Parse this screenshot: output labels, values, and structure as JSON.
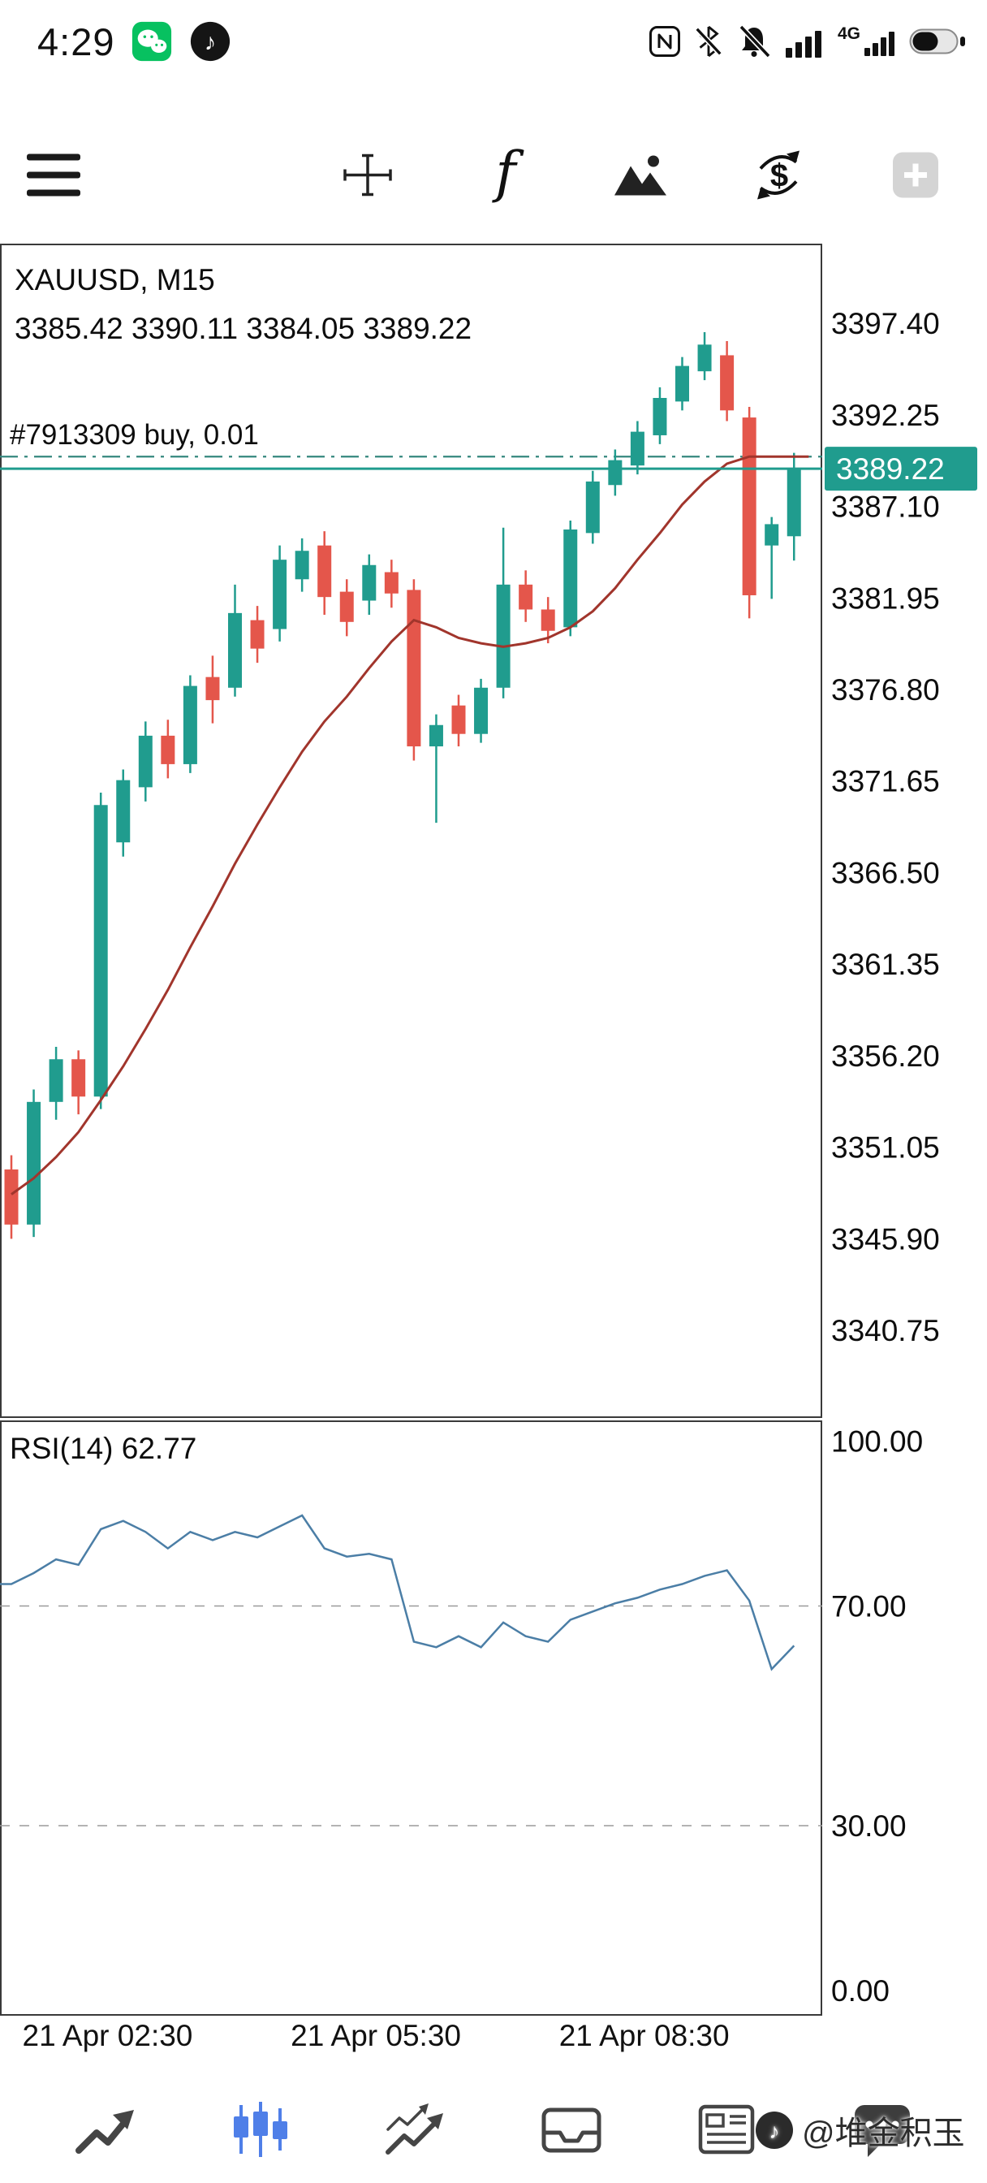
{
  "status_bar": {
    "time": "4:29",
    "network_label": "4G",
    "app_icons": [
      "wechat",
      "tiktok"
    ],
    "system_icons": [
      "nfc",
      "bluetooth-off",
      "mute",
      "signal",
      "signal-4g",
      "battery"
    ]
  },
  "icons": {
    "fx_glyph": "f",
    "dollar_glyph": "$",
    "note_glyph": "♪"
  },
  "top_toolbar": {
    "items": [
      "menu",
      "crosshair",
      "indicators",
      "objects",
      "new-order",
      "add-chart"
    ]
  },
  "time_axis": {
    "labels": [
      "21 Apr 02:30",
      "21 Apr 05:30",
      "21 Apr 08:30"
    ],
    "candle_indices": [
      4.3,
      16.3,
      28.3
    ]
  },
  "bottom_bar": {
    "items": [
      "quotes",
      "charts",
      "trade",
      "history",
      "news",
      "messages"
    ],
    "active": "charts",
    "active_color": "#4f7fe8"
  },
  "watermark": {
    "text": "@堆金积玉"
  },
  "colors": {
    "bull": "#209c8e",
    "bear": "#e4564b",
    "ma": "#a1352c",
    "rsi": "#4b7ea6",
    "accent": "#209c8e",
    "icon_dark": "#454545"
  },
  "chart_data": [
    {
      "type": "candlestick",
      "title": "XAUUSD, M15",
      "symbol": "XAUUSD",
      "timeframe": "M15",
      "ohlc_display": "3385.42 3390.11 3384.05 3389.22",
      "open": 3385.42,
      "high": 3390.11,
      "low": 3384.05,
      "close": 3389.22,
      "bull_color": "#209c8e",
      "bear_color": "#e4564b",
      "ylim": [
        3335.82,
        3401.88
      ],
      "y_ticks": [
        3397.4,
        3392.25,
        3387.1,
        3381.95,
        3376.8,
        3371.65,
        3366.5,
        3361.35,
        3356.2,
        3351.05,
        3345.9,
        3340.75
      ],
      "current_price": 3389.22,
      "position_line": {
        "label": "#7913309 buy, 0.01",
        "price": 3389.9,
        "color": "#35877e"
      },
      "candles": [
        [
          3349.8,
          3350.6,
          3345.9,
          3346.7
        ],
        [
          3346.7,
          3354.3,
          3346.0,
          3353.6
        ],
        [
          3353.6,
          3356.7,
          3352.6,
          3356.0
        ],
        [
          3356.0,
          3356.5,
          3352.9,
          3353.9
        ],
        [
          3353.9,
          3371.0,
          3353.2,
          3370.3
        ],
        [
          3368.2,
          3372.3,
          3367.4,
          3371.7
        ],
        [
          3371.3,
          3375.0,
          3370.5,
          3374.2
        ],
        [
          3374.2,
          3375.1,
          3371.8,
          3372.6
        ],
        [
          3372.6,
          3377.6,
          3372.1,
          3377.0
        ],
        [
          3377.5,
          3378.7,
          3374.9,
          3376.2
        ],
        [
          3376.9,
          3382.7,
          3376.4,
          3381.1
        ],
        [
          3380.7,
          3381.5,
          3378.3,
          3379.1
        ],
        [
          3380.2,
          3384.9,
          3379.5,
          3384.1
        ],
        [
          3383.0,
          3385.3,
          3382.3,
          3384.6
        ],
        [
          3384.9,
          3385.7,
          3381.0,
          3382.0
        ],
        [
          3382.3,
          3383.0,
          3379.8,
          3380.6
        ],
        [
          3381.8,
          3384.4,
          3381.0,
          3383.8
        ],
        [
          3383.4,
          3384.1,
          3381.4,
          3382.2
        ],
        [
          3382.4,
          3383.0,
          3372.8,
          3373.6
        ],
        [
          3373.6,
          3375.4,
          3369.3,
          3374.8
        ],
        [
          3375.9,
          3376.5,
          3373.6,
          3374.3
        ],
        [
          3374.3,
          3377.4,
          3373.8,
          3376.9
        ],
        [
          3376.9,
          3385.9,
          3376.3,
          3382.7
        ],
        [
          3382.7,
          3383.5,
          3380.6,
          3381.3
        ],
        [
          3381.3,
          3382.0,
          3379.4,
          3380.1
        ],
        [
          3380.3,
          3386.3,
          3379.8,
          3385.8
        ],
        [
          3385.6,
          3389.1,
          3385.0,
          3388.5
        ],
        [
          3388.3,
          3390.3,
          3387.7,
          3389.7
        ],
        [
          3389.4,
          3391.9,
          3388.9,
          3391.3
        ],
        [
          3391.1,
          3393.8,
          3390.6,
          3393.2
        ],
        [
          3393.0,
          3395.5,
          3392.5,
          3395.0
        ],
        [
          3394.7,
          3396.9,
          3394.2,
          3396.2
        ],
        [
          3395.6,
          3396.4,
          3391.9,
          3392.5
        ],
        [
          3392.1,
          3392.7,
          3380.8,
          3382.1
        ],
        [
          3384.9,
          3386.5,
          3381.9,
          3386.1
        ],
        [
          3385.42,
          3390.11,
          3384.05,
          3389.22
        ]
      ],
      "ma_line": {
        "name": "MA",
        "color": "#a1352c",
        "values": [
          3348.4,
          3349.3,
          3350.5,
          3351.9,
          3353.7,
          3355.6,
          3357.7,
          3359.9,
          3362.3,
          3364.6,
          3367.0,
          3369.2,
          3371.3,
          3373.3,
          3375.0,
          3376.4,
          3378.0,
          3379.5,
          3380.7,
          3380.3,
          3379.7,
          3379.4,
          3379.2,
          3379.4,
          3379.7,
          3380.3,
          3381.2,
          3382.5,
          3384.1,
          3385.6,
          3387.2,
          3388.5,
          3389.5,
          3389.9,
          3389.9,
          3389.9
        ]
      }
    },
    {
      "type": "line",
      "title": "RSI(14) 62.77",
      "name": "RSI(14)",
      "current_value": 62.77,
      "color": "#4b7ea6",
      "ylim": [
        -4.6,
        103.8
      ],
      "y_ticks": [
        100,
        70,
        30,
        0
      ],
      "levels": [
        70,
        30
      ],
      "values": [
        74,
        76,
        78.5,
        77.5,
        84,
        85.5,
        83.5,
        80.5,
        83.5,
        82,
        83.5,
        82.5,
        84.5,
        86.5,
        80.5,
        79,
        79.5,
        78.5,
        63.5,
        62.5,
        64.5,
        62.5,
        67,
        64.5,
        63.5,
        67.5,
        69,
        70.5,
        71.5,
        73,
        74,
        75.5,
        76.5,
        71,
        58.5,
        62.77
      ]
    }
  ]
}
